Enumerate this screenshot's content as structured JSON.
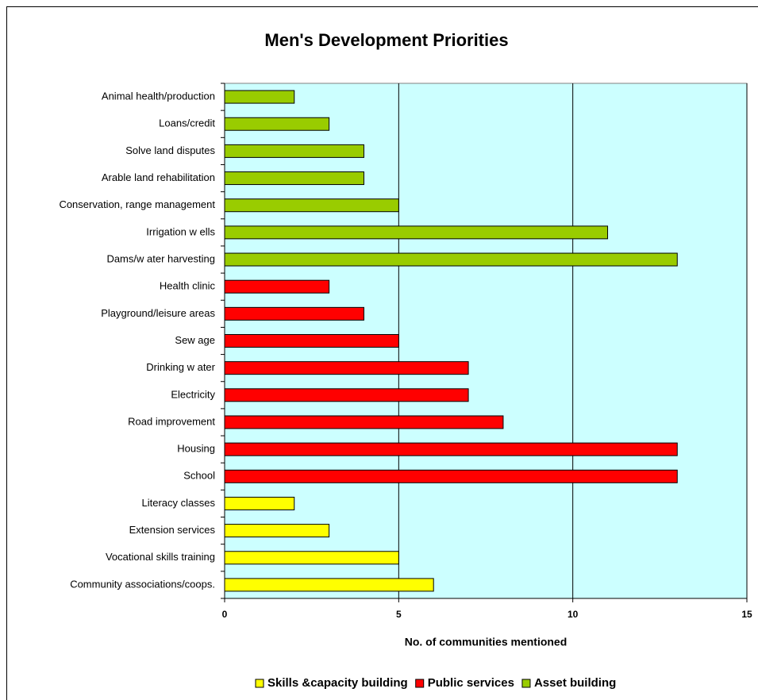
{
  "chart_data": {
    "type": "bar",
    "orientation": "horizontal",
    "title": "Men's Development Priorities",
    "x_label": "No. of communities mentioned",
    "categories": [
      "Animal health/production",
      "Loans/credit",
      "Solve land disputes",
      "Arable land rehabilitation",
      "Conservation, range management",
      "Irrigation w ells",
      "Dams/w ater harvesting",
      "Health clinic",
      "Playground/leisure areas",
      "Sew age",
      "Drinking w ater",
      "Electricity",
      "Road improvement",
      "Housing",
      "School",
      "Literacy classes",
      "Extension services",
      "Vocational skills training",
      "Community associations/coops."
    ],
    "series": [
      {
        "name": "Skills &capacity building",
        "color": "#ffff00",
        "values": [
          null,
          null,
          null,
          null,
          null,
          null,
          null,
          null,
          null,
          null,
          null,
          null,
          null,
          null,
          null,
          2,
          3,
          5,
          6
        ]
      },
      {
        "name": "Public services",
        "color": "#ff0000",
        "values": [
          null,
          null,
          null,
          null,
          null,
          null,
          null,
          3,
          4,
          5,
          7,
          7,
          8,
          13,
          13,
          null,
          null,
          null,
          null
        ]
      },
      {
        "name": "Asset building",
        "color": "#99cc00",
        "values": [
          2,
          3,
          4,
          4,
          5,
          11,
          13,
          null,
          null,
          null,
          null,
          null,
          null,
          null,
          null,
          null,
          null,
          null,
          null
        ]
      }
    ],
    "xlim": [
      0,
      15
    ],
    "xticks": [
      0,
      5,
      10,
      15
    ],
    "grid": true,
    "plot_background": "#ccffff",
    "legend": "bottom"
  }
}
